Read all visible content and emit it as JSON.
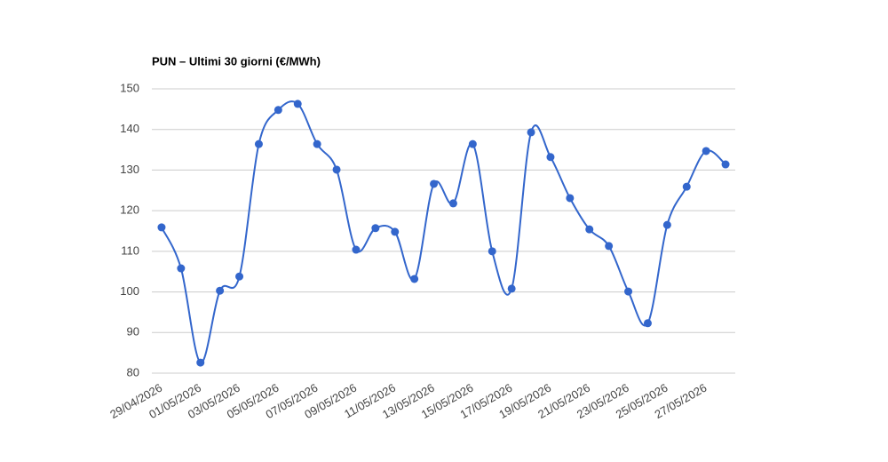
{
  "chart_data": {
    "type": "line",
    "title": "PUN – Ultimi 30 giorni (€/MWh)",
    "categories": [
      "29/04/2026",
      null,
      "01/05/2026",
      null,
      "03/05/2026",
      null,
      "05/05/2026",
      null,
      "07/05/2026",
      null,
      "09/05/2026",
      null,
      "11/05/2026",
      null,
      "13/05/2026",
      null,
      "15/05/2026",
      null,
      "17/05/2026",
      null,
      "19/05/2026",
      null,
      "21/05/2026",
      null,
      "23/05/2026",
      null,
      "25/05/2026",
      null,
      "27/05/2026",
      null
    ],
    "series": [
      {
        "name": "PUN",
        "color": "#3366cc",
        "values": [
          115.9,
          105.8,
          82.6,
          100.3,
          103.8,
          136.4,
          144.8,
          146.3,
          136.4,
          130.1,
          110.4,
          115.7,
          114.8,
          103.2,
          126.6,
          121.8,
          136.4,
          110,
          100.8,
          139.3,
          133.2,
          123.1,
          115.4,
          111.3,
          100.1,
          92.3,
          116.5,
          125.9,
          134.7,
          131.4
        ]
      }
    ],
    "ylim": [
      80,
      150
    ],
    "yticks": [
      80,
      90,
      100,
      110,
      120,
      130,
      140,
      150
    ],
    "grid": true
  }
}
